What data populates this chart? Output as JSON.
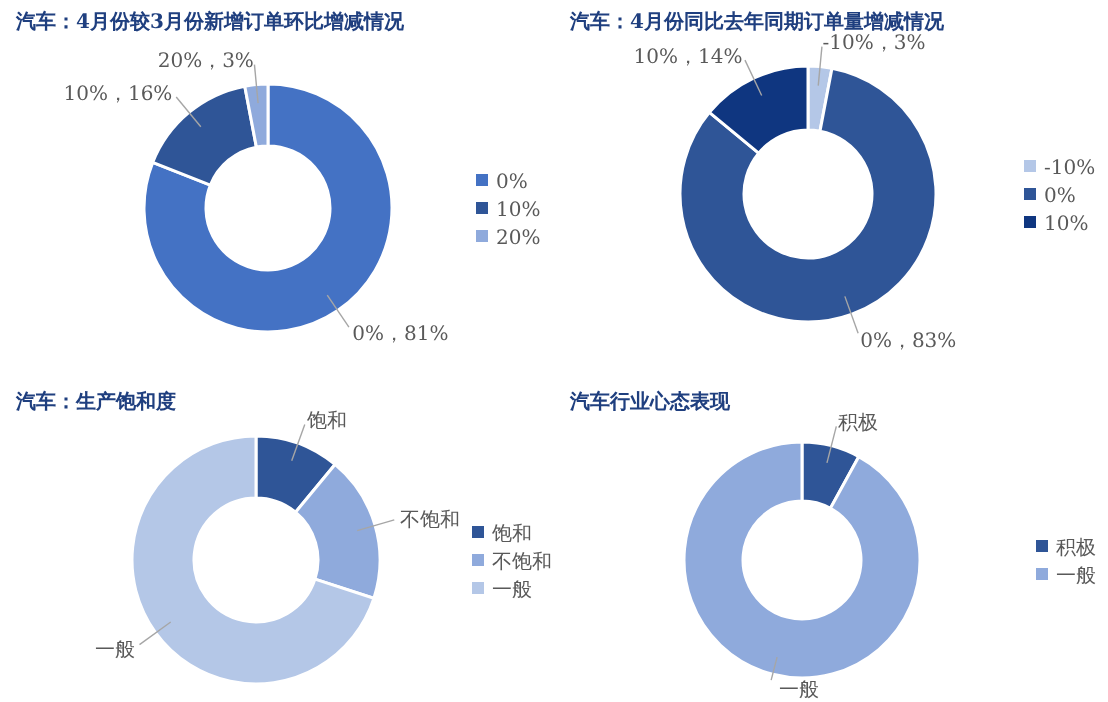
{
  "chart_data": [
    {
      "type": "donut",
      "title": "汽车：4月份较3月份新增订单环比增减情况",
      "categories": [
        "0%",
        "10%",
        "20%"
      ],
      "values": [
        81,
        16,
        3
      ],
      "colors": [
        "#4472c4",
        "#2f5597",
        "#8faadc"
      ],
      "value_labels": [
        "0%，81%",
        "10%，16%",
        "20%，3%"
      ],
      "legend": "right"
    },
    {
      "type": "donut",
      "title": "汽车：4月份同比去年同期订单量增减情况",
      "categories": [
        "-10%",
        "0%",
        "10%"
      ],
      "values": [
        3,
        83,
        14
      ],
      "colors": [
        "#b4c7e7",
        "#2f5597",
        "#0f3680"
      ],
      "value_labels": [
        "-10%，3%",
        "0%，83%",
        "10%，14%"
      ],
      "legend": "right"
    },
    {
      "type": "donut",
      "title": "汽车：生产饱和度",
      "categories": [
        "饱和",
        "不饱和",
        "一般"
      ],
      "values": [
        11,
        19,
        70
      ],
      "colors": [
        "#2f5597",
        "#8faadc",
        "#b4c7e7"
      ],
      "value_labels": [
        "饱和",
        "不饱和",
        "一般"
      ],
      "legend": "right"
    },
    {
      "type": "donut",
      "title": "汽车行业心态表现",
      "categories": [
        "积极",
        "一般"
      ],
      "values": [
        8,
        92
      ],
      "colors": [
        "#2f5597",
        "#8faadc"
      ],
      "value_labels": [
        "积极",
        "一般"
      ],
      "legend": "right"
    }
  ]
}
